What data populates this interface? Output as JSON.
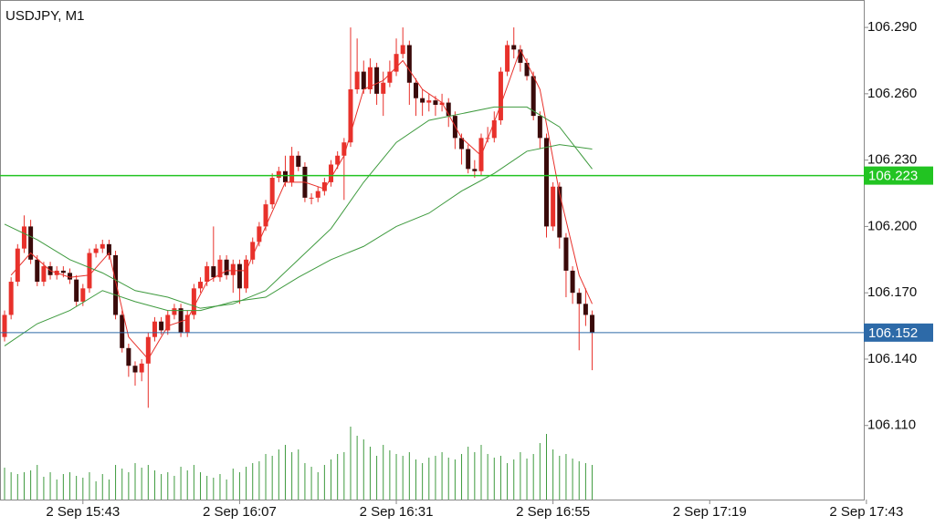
{
  "chart_data": {
    "type": "candlestick",
    "title": "USDJPY, M1",
    "up_color": "#e8312b",
    "down_color": "#3a0a0a",
    "wick_color": "#e8312b",
    "volume_color": "#3e9a3e",
    "open": [
      106.15,
      106.16,
      106.175,
      106.19,
      106.2,
      106.185,
      106.175,
      106.182,
      106.178,
      106.18,
      106.179,
      106.176,
      106.166,
      106.172,
      106.188,
      106.19,
      106.192,
      106.187,
      106.16,
      106.145,
      106.137,
      106.134,
      106.138,
      106.15,
      106.157,
      106.153,
      106.16,
      106.163,
      106.152,
      106.16,
      106.172,
      106.175,
      106.182,
      106.177,
      106.185,
      106.178,
      106.183,
      106.172,
      106.185,
      106.193,
      106.2,
      106.21,
      106.222,
      106.225,
      106.22,
      106.232,
      106.227,
      106.213,
      106.213,
      106.216,
      106.22,
      106.228,
      106.232,
      106.238,
      106.262,
      106.27,
      106.262,
      106.272,
      106.26,
      106.265,
      106.27,
      106.278,
      106.282,
      106.265,
      106.258,
      106.256,
      106.257,
      106.255,
      106.256,
      106.25,
      106.24,
      106.235,
      106.226,
      106.225,
      106.24,
      106.24,
      106.248,
      106.27,
      106.282,
      106.28,
      106.274,
      106.268,
      106.25,
      106.24,
      106.2,
      106.218,
      106.195,
      106.18,
      106.17,
      106.165,
      106.16
    ],
    "high": [
      106.162,
      106.177,
      106.192,
      106.205,
      106.203,
      106.187,
      106.184,
      106.184,
      106.182,
      106.182,
      106.181,
      106.178,
      106.174,
      106.19,
      106.192,
      106.194,
      106.194,
      106.189,
      106.162,
      106.147,
      106.139,
      106.14,
      106.152,
      106.159,
      106.159,
      106.162,
      106.165,
      106.165,
      106.162,
      106.174,
      106.177,
      106.184,
      106.2,
      106.187,
      106.187,
      106.185,
      106.185,
      106.187,
      106.195,
      106.202,
      106.212,
      106.224,
      106.227,
      106.232,
      106.236,
      106.234,
      106.229,
      106.215,
      106.218,
      106.222,
      106.23,
      106.234,
      106.24,
      106.29,
      106.285,
      106.275,
      106.276,
      106.274,
      106.27,
      106.275,
      106.285,
      106.29,
      106.284,
      106.267,
      106.262,
      106.26,
      106.259,
      106.26,
      106.258,
      106.252,
      106.242,
      106.237,
      106.23,
      106.242,
      106.245,
      106.252,
      106.272,
      106.284,
      106.29,
      106.282,
      106.276,
      106.27,
      106.252,
      106.242,
      106.22,
      106.22,
      106.197,
      106.182,
      106.172,
      106.172,
      106.162
    ],
    "low": [
      106.148,
      106.158,
      106.173,
      106.188,
      106.183,
      106.173,
      106.173,
      106.176,
      106.176,
      106.177,
      106.174,
      106.164,
      106.164,
      106.17,
      106.186,
      106.188,
      106.185,
      106.158,
      106.143,
      106.132,
      106.128,
      106.13,
      106.118,
      106.148,
      106.151,
      106.151,
      106.158,
      106.15,
      106.15,
      106.158,
      106.17,
      106.173,
      106.175,
      106.175,
      106.176,
      106.17,
      106.165,
      106.17,
      106.183,
      106.191,
      106.198,
      106.208,
      106.22,
      106.218,
      106.218,
      106.225,
      106.211,
      106.21,
      106.211,
      106.214,
      106.218,
      106.226,
      106.212,
      106.236,
      106.26,
      106.26,
      106.26,
      106.255,
      106.25,
      106.263,
      106.268,
      106.276,
      106.255,
      106.25,
      106.25,
      106.252,
      106.25,
      106.252,
      106.245,
      106.235,
      106.228,
      106.224,
      106.222,
      106.223,
      106.238,
      106.238,
      106.246,
      106.268,
      106.276,
      106.27,
      106.266,
      106.248,
      106.235,
      106.195,
      106.198,
      106.19,
      106.168,
      106.165,
      106.144,
      106.155,
      106.135
    ],
    "close": [
      106.16,
      106.175,
      106.19,
      106.2,
      106.185,
      106.175,
      106.182,
      106.178,
      106.18,
      106.179,
      106.176,
      106.166,
      106.172,
      106.188,
      106.19,
      106.192,
      106.187,
      106.16,
      106.145,
      106.137,
      106.134,
      106.138,
      106.15,
      106.157,
      106.153,
      106.16,
      106.163,
      106.152,
      106.16,
      106.172,
      106.175,
      106.182,
      106.177,
      106.185,
      106.178,
      106.183,
      106.172,
      106.185,
      106.193,
      106.2,
      106.21,
      106.222,
      106.225,
      106.22,
      106.232,
      106.227,
      106.213,
      106.213,
      106.216,
      106.22,
      106.228,
      106.232,
      106.238,
      106.262,
      106.27,
      106.262,
      106.272,
      106.26,
      106.265,
      106.27,
      106.278,
      106.282,
      106.265,
      106.258,
      106.256,
      106.257,
      106.255,
      106.256,
      106.25,
      106.24,
      106.235,
      106.226,
      106.225,
      106.24,
      106.24,
      106.248,
      106.27,
      106.282,
      106.28,
      106.274,
      106.268,
      106.25,
      106.24,
      106.2,
      106.218,
      106.195,
      106.18,
      106.17,
      106.165,
      106.16,
      106.152
    ],
    "volume": [
      35,
      30,
      28,
      30,
      32,
      38,
      25,
      30,
      22,
      28,
      30,
      26,
      24,
      30,
      20,
      28,
      22,
      38,
      34,
      30,
      40,
      35,
      38,
      32,
      28,
      30,
      26,
      36,
      32,
      38,
      30,
      26,
      24,
      28,
      22,
      34,
      30,
      36,
      40,
      42,
      50,
      48,
      55,
      60,
      52,
      55,
      40,
      36,
      30,
      38,
      44,
      50,
      52,
      80,
      70,
      66,
      58,
      48,
      60,
      54,
      50,
      48,
      52,
      44,
      40,
      46,
      48,
      52,
      46,
      44,
      50,
      58,
      52,
      60,
      50,
      46,
      48,
      40,
      44,
      52,
      45,
      50,
      62,
      72,
      55,
      48,
      50,
      45,
      42,
      40,
      38
    ],
    "volume_lim": [
      0,
      100
    ],
    "ma": [
      {
        "color": "#e8312b",
        "x": [
          1,
          4,
          7,
          10,
          13,
          16,
          19,
          22,
          25,
          28,
          31,
          34,
          37,
          40,
          43,
          46,
          49,
          52,
          55,
          58,
          61,
          64,
          67,
          70,
          73,
          76,
          79,
          82,
          85,
          88,
          90
        ],
        "values": [
          106.178,
          106.188,
          106.18,
          106.177,
          106.178,
          106.188,
          106.15,
          106.14,
          106.155,
          106.158,
          106.175,
          106.18,
          106.18,
          106.2,
          106.22,
          106.22,
          106.217,
          106.232,
          106.262,
          106.266,
          106.275,
          106.262,
          106.256,
          106.24,
          106.232,
          106.255,
          106.28,
          106.262,
          106.215,
          106.178,
          106.165
        ]
      },
      {
        "color": "#3e9a3e",
        "x": [
          0,
          5,
          10,
          15,
          20,
          25,
          30,
          35,
          40,
          45,
          50,
          55,
          60,
          65,
          70,
          75,
          80,
          85,
          90
        ],
        "values": [
          106.201,
          106.194,
          106.185,
          106.179,
          106.171,
          106.168,
          106.163,
          106.165,
          106.171,
          106.185,
          106.199,
          106.22,
          106.238,
          106.248,
          106.251,
          106.254,
          106.254,
          106.245,
          106.226
        ]
      },
      {
        "color": "#3e9a3e",
        "x": [
          0,
          5,
          10,
          15,
          20,
          25,
          30,
          35,
          40,
          45,
          50,
          55,
          60,
          65,
          70,
          75,
          80,
          85,
          90
        ],
        "values": [
          106.146,
          106.156,
          106.162,
          106.171,
          106.166,
          106.162,
          106.162,
          106.166,
          106.168,
          106.177,
          106.185,
          106.191,
          106.2,
          106.206,
          106.216,
          106.224,
          106.234,
          106.237,
          106.235
        ]
      }
    ],
    "levels": [
      {
        "value": 106.223,
        "color": "#22c422"
      },
      {
        "value": 106.152,
        "color": "#2d6aa8"
      }
    ],
    "xlim": [
      -0.7,
      131.6
    ],
    "xticks": [
      {
        "value": 12,
        "label": "2 Sep 15:43"
      },
      {
        "value": 36,
        "label": "2 Sep 16:07"
      },
      {
        "value": 60,
        "label": "2 Sep 16:31"
      },
      {
        "value": 84,
        "label": "2 Sep 16:55"
      },
      {
        "value": 108,
        "label": "2 Sep 17:19"
      },
      {
        "value": 132,
        "label": "2 Sep 17:43"
      }
    ],
    "ylim": [
      106.0765,
      106.3024
    ],
    "yticks": [
      {
        "value": 106.29,
        "label": "106.290"
      },
      {
        "value": 106.26,
        "label": "106.260"
      },
      {
        "value": 106.23,
        "label": "106.230"
      },
      {
        "value": 106.2,
        "label": "106.200"
      },
      {
        "value": 106.17,
        "label": "106.170"
      },
      {
        "value": 106.14,
        "label": "106.140"
      },
      {
        "value": 106.11,
        "label": "106.110"
      }
    ]
  }
}
